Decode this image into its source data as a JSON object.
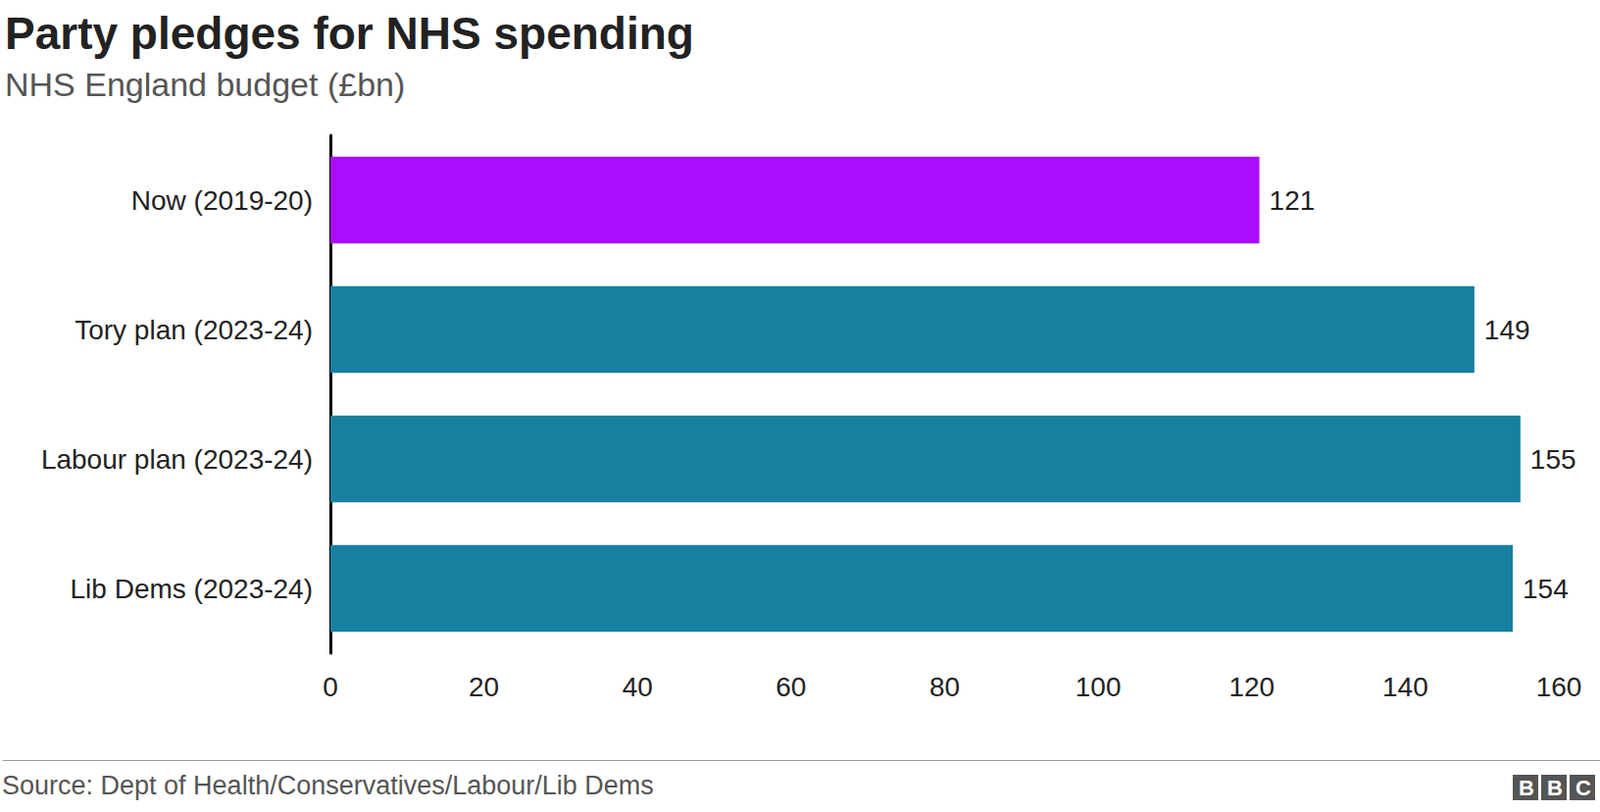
{
  "chart_data": {
    "type": "bar",
    "title": "Party pledges for NHS spending",
    "subtitle": "NHS England budget (£bn)",
    "categories": [
      "Now (2019-20)",
      "Tory plan (2023-24)",
      "Labour plan (2023-24)",
      "Lib Dems (2023-24)"
    ],
    "values": [
      121,
      149,
      155,
      154
    ],
    "colors": [
      "#aa0cff",
      "#1780a1",
      "#1780a1",
      "#1780a1"
    ],
    "orientation": "horizontal",
    "data_labels": true,
    "grid": false,
    "xlim": [
      0,
      160
    ],
    "xticks": [
      0,
      20,
      40,
      60,
      80,
      100,
      120,
      140,
      160
    ],
    "source": "Source: Dept of Health/Conservatives/Labour/Lib Dems",
    "logo": "BBC"
  }
}
